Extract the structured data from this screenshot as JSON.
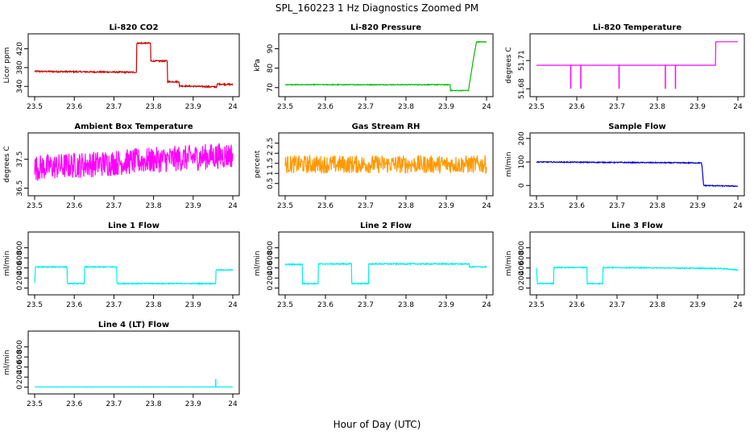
{
  "figure": {
    "title": "SPL_160223  1 Hz Diagnostics Zoomed PM",
    "xlabel": "Hour of Day (UTC)"
  },
  "chart_data": [
    {
      "type": "line",
      "title": "Li-820 CO2",
      "ylabel": "Licor ppm",
      "color": "#cc0000",
      "xlim": [
        23.5,
        24.0
      ],
      "ylim": [
        325,
        445
      ],
      "xticks": [
        23.5,
        23.6,
        23.7,
        23.8,
        23.9,
        24.0
      ],
      "yticks": [
        340,
        380,
        420
      ],
      "series": [
        {
          "x": [
            23.5,
            23.757,
            23.757,
            23.793,
            23.793,
            23.835,
            23.835,
            23.865,
            23.865,
            23.96,
            23.96,
            24.0
          ],
          "y": [
            372,
            370,
            432,
            432,
            394,
            394,
            350,
            350,
            341,
            339,
            345,
            344
          ]
        }
      ],
      "noise": 1.5
    },
    {
      "type": "line",
      "title": "Li-820 Pressure",
      "ylabel": "kPa",
      "color": "#00bb00",
      "xlim": [
        23.5,
        24.0
      ],
      "ylim": [
        67,
        96
      ],
      "xticks": [
        23.5,
        23.6,
        23.7,
        23.8,
        23.9,
        24.0
      ],
      "yticks": [
        70,
        80,
        90
      ],
      "series": [
        {
          "x": [
            23.5,
            23.91,
            23.91,
            23.955,
            23.97,
            23.975,
            24.0
          ],
          "y": [
            71.5,
            71.5,
            68.5,
            68.5,
            88,
            93.5,
            93.5
          ]
        }
      ],
      "noise": 0.2
    },
    {
      "type": "line",
      "title": "Li-820 Temperature",
      "ylabel": "degrees C",
      "color": "#ff00ff",
      "xlim": [
        23.5,
        24.0
      ],
      "ylim": [
        51.675,
        51.735
      ],
      "xticks": [
        23.5,
        23.6,
        23.7,
        23.8,
        23.9,
        24.0
      ],
      "yticks": [
        51.68,
        51.71
      ],
      "series": [
        {
          "x": [
            23.5,
            23.945,
            23.945,
            24.0
          ],
          "y": [
            51.705,
            51.705,
            51.73,
            51.73
          ]
        }
      ],
      "spikes": [
        {
          "x": 23.585,
          "y": 51.68
        },
        {
          "x": 23.61,
          "y": 51.68
        },
        {
          "x": 23.705,
          "y": 51.68
        },
        {
          "x": 23.82,
          "y": 51.68
        },
        {
          "x": 23.845,
          "y": 51.68
        }
      ],
      "noise": 0
    },
    {
      "type": "line",
      "title": "Ambient Box Temperature",
      "ylabel": "degrees C",
      "color": "#ff00ff",
      "xlim": [
        23.5,
        24.0
      ],
      "ylim": [
        36.35,
        38.3
      ],
      "xticks": [
        23.5,
        23.6,
        23.7,
        23.8,
        23.9,
        24.0
      ],
      "yticks": [
        36.5,
        37.5
      ],
      "series": [
        {
          "x": [
            23.5,
            24.0
          ],
          "y": [
            37.2,
            37.65
          ]
        }
      ],
      "noise": 0.45
    },
    {
      "type": "line",
      "title": "Gas Stream RH",
      "ylabel": "percent",
      "color": "#ff9900",
      "xlim": [
        23.5,
        24.0
      ],
      "ylim": [
        0.05,
        2.85
      ],
      "xticks": [
        23.5,
        23.6,
        23.7,
        23.8,
        23.9,
        24.0
      ],
      "yticks": [
        0.5,
        1.0,
        1.5,
        2.0,
        2.5
      ],
      "series": [
        {
          "x": [
            23.5,
            24.0
          ],
          "y": [
            1.45,
            1.45
          ]
        }
      ],
      "noise": 0.45
    },
    {
      "type": "line",
      "title": "Sample Flow",
      "ylabel": "ml/min",
      "color": "#0000cc",
      "xlim": [
        23.5,
        24.0
      ],
      "ylim": [
        -30,
        210
      ],
      "xticks": [
        23.5,
        23.6,
        23.7,
        23.8,
        23.9,
        24.0
      ],
      "yticks": [
        0,
        100,
        200
      ],
      "series": [
        {
          "x": [
            23.5,
            23.91,
            23.915,
            24.0
          ],
          "y": [
            100,
            96,
            0,
            -3
          ]
        }
      ],
      "noise": 2
    },
    {
      "type": "line",
      "title": "Line 1 Flow",
      "ylabel": "ml/min",
      "color": "#00eeee",
      "xlim": [
        23.5,
        24.0
      ],
      "ylim": [
        -70,
        1050
      ],
      "xticks": [
        23.5,
        23.6,
        23.7,
        23.8,
        23.9,
        24.0
      ],
      "yticks": [
        0,
        200,
        400,
        600,
        800
      ],
      "series": [
        {
          "x": [
            23.5,
            23.502,
            23.582,
            23.582,
            23.625,
            23.625,
            23.707,
            23.707,
            23.957,
            23.957,
            24.0
          ],
          "y": [
            100,
            420,
            420,
            90,
            90,
            420,
            420,
            90,
            90,
            360,
            360
          ]
        }
      ],
      "noise": 10
    },
    {
      "type": "line",
      "title": "Line 2 Flow",
      "ylabel": "ml/min",
      "color": "#00eeee",
      "xlim": [
        23.5,
        24.0
      ],
      "ylim": [
        -70,
        1050
      ],
      "xticks": [
        23.5,
        23.6,
        23.7,
        23.8,
        23.9,
        24.0
      ],
      "yticks": [
        0,
        200,
        400,
        600,
        800
      ],
      "series": [
        {
          "x": [
            23.5,
            23.543,
            23.543,
            23.582,
            23.582,
            23.665,
            23.665,
            23.707,
            23.707,
            23.957,
            23.957,
            24.0
          ],
          "y": [
            470,
            470,
            90,
            90,
            480,
            480,
            90,
            90,
            480,
            480,
            420,
            420
          ]
        }
      ],
      "noise": 12
    },
    {
      "type": "line",
      "title": "Line 3 Flow",
      "ylabel": "ml/min",
      "color": "#00eeee",
      "xlim": [
        23.5,
        24.0
      ],
      "ylim": [
        -70,
        1050
      ],
      "xticks": [
        23.5,
        23.6,
        23.7,
        23.8,
        23.9,
        24.0
      ],
      "yticks": [
        0,
        200,
        400,
        600,
        800
      ],
      "series": [
        {
          "x": [
            23.5,
            23.502,
            23.543,
            23.543,
            23.625,
            23.625,
            23.665,
            23.665,
            23.957,
            24.0
          ],
          "y": [
            400,
            90,
            90,
            410,
            410,
            90,
            90,
            410,
            390,
            360
          ]
        }
      ],
      "noise": 10
    },
    {
      "type": "line",
      "title": "Line 4 (LT) Flow",
      "ylabel": "ml/min",
      "color": "#00eeee",
      "xlim": [
        23.5,
        24.0
      ],
      "ylim": [
        -70,
        1050
      ],
      "xticks": [
        23.5,
        23.6,
        23.7,
        23.8,
        23.9,
        24.0
      ],
      "yticks": [
        0,
        200,
        400,
        600,
        800
      ],
      "series": [
        {
          "x": [
            23.5,
            24.0
          ],
          "y": [
            5,
            5
          ]
        }
      ],
      "spikes": [
        {
          "x": 23.957,
          "y": 160
        }
      ],
      "noise": 2
    }
  ]
}
